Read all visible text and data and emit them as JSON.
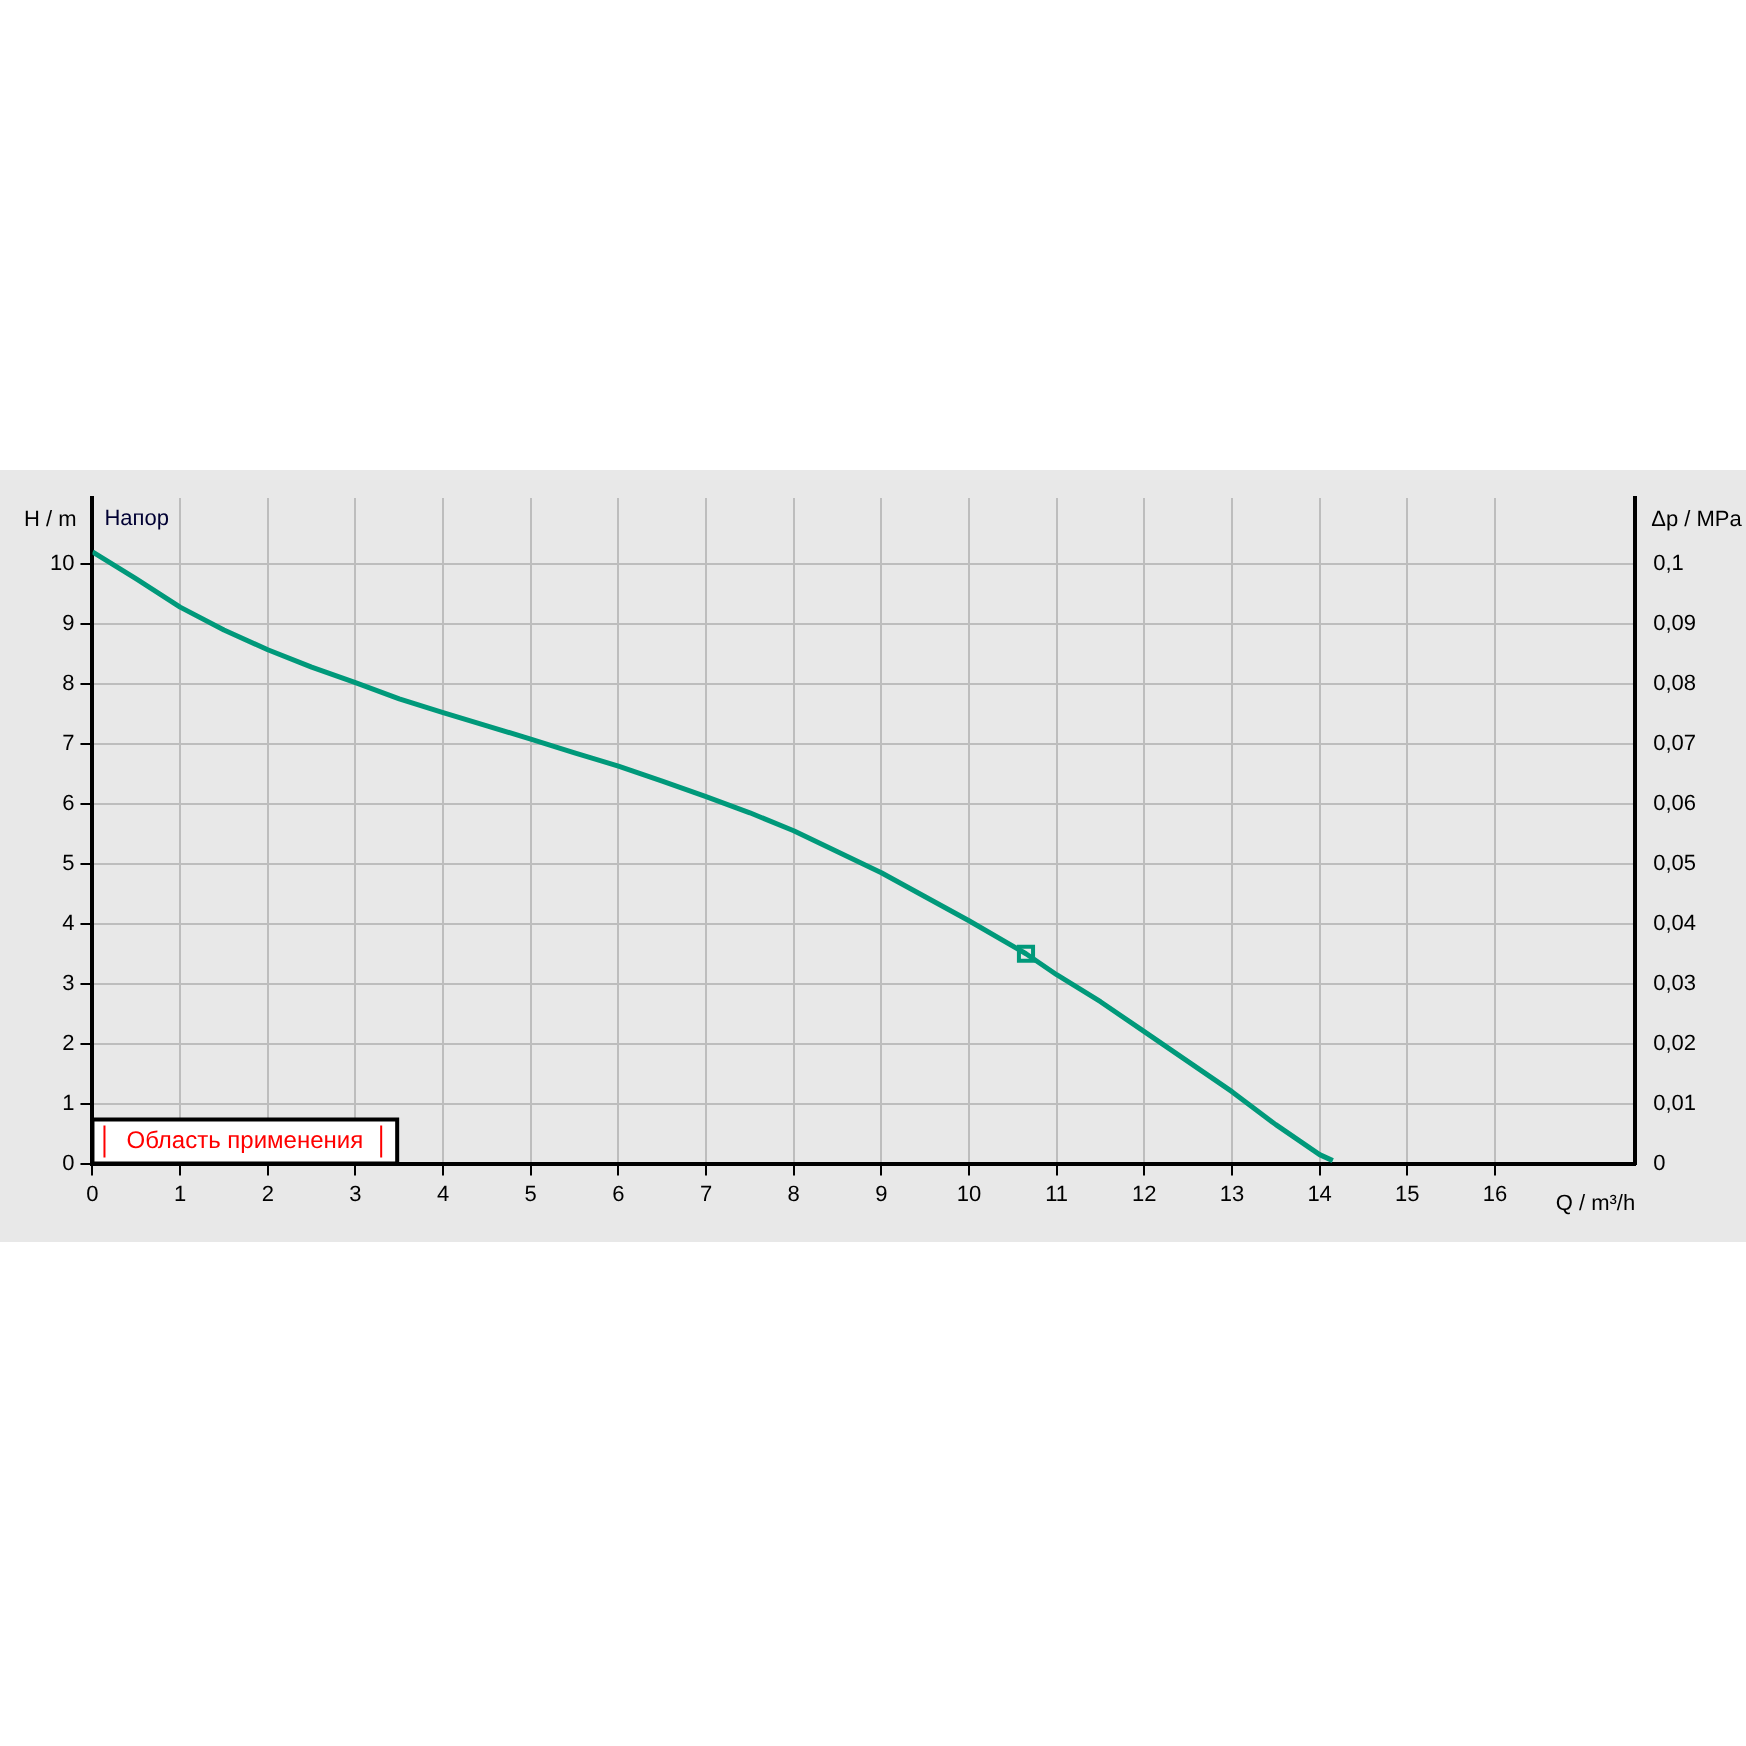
{
  "chart_data": {
    "type": "line",
    "xlabel": "Q / m³/h",
    "ylabel": "H / m",
    "y2label": "Δp / MPa",
    "annotations": [
      "Напор",
      "Область применения"
    ],
    "xlim": [
      0,
      17.6
    ],
    "ylim": [
      0,
      11.1
    ],
    "y2lim": [
      0,
      0.111
    ],
    "xticks": [
      0,
      1,
      2,
      3,
      4,
      5,
      6,
      7,
      8,
      9,
      10,
      11,
      12,
      13,
      14,
      15,
      16
    ],
    "yticks": [
      0,
      1,
      2,
      3,
      4,
      5,
      6,
      7,
      8,
      9,
      10
    ],
    "y2ticks": [
      0,
      {
        "value": 0.01,
        "label": "0,01"
      },
      {
        "value": 0.02,
        "label": "0,02"
      },
      {
        "value": 0.03,
        "label": "0,03"
      },
      {
        "value": 0.04,
        "label": "0,04"
      },
      {
        "value": 0.05,
        "label": "0,05"
      },
      {
        "value": 0.06,
        "label": "0,06"
      },
      {
        "value": 0.07,
        "label": "0,07"
      },
      {
        "value": 0.08,
        "label": "0,08"
      },
      {
        "value": 0.09,
        "label": "0,09"
      },
      {
        "value": 0.1,
        "label": "0,1"
      }
    ],
    "grid": true,
    "legend": false,
    "marker": "none",
    "line_style": "solid",
    "series": [
      {
        "color": "#00997a",
        "x": [
          0,
          0.5,
          1,
          1.5,
          2,
          2.5,
          3,
          3.5,
          4,
          4.5,
          5,
          5.5,
          6,
          6.5,
          7,
          7.5,
          8,
          8.5,
          9,
          9.5,
          10,
          10.65,
          11,
          11.5,
          12,
          12.5,
          13,
          13.5,
          14,
          14.15
        ],
        "values": [
          10.2,
          9.75,
          9.28,
          8.9,
          8.57,
          8.28,
          8.02,
          7.75,
          7.52,
          7.3,
          7.08,
          6.85,
          6.63,
          6.38,
          6.12,
          5.85,
          5.55,
          5.2,
          4.85,
          4.45,
          4.05,
          3.5,
          3.15,
          2.7,
          2.2,
          1.7,
          1.2,
          0.65,
          0.15,
          0.05
        ]
      },
      {
        "type": "scatter",
        "marker": "square",
        "color": "#00997a",
        "x": [
          10.65
        ],
        "values": [
          3.5
        ]
      }
    ]
  }
}
